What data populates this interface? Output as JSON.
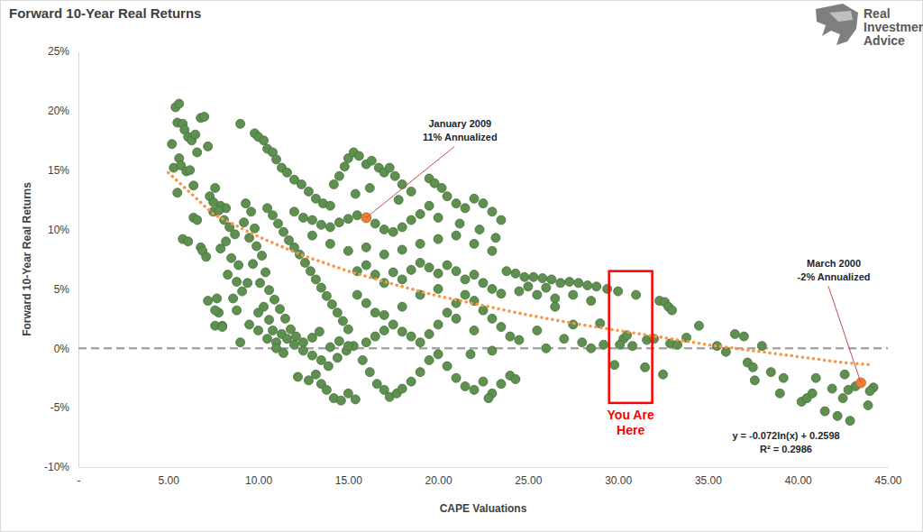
{
  "chart_data": {
    "type": "scatter",
    "title": "Forward 10-Year Real Returns",
    "logo": [
      "Real",
      "Investment",
      "Advice"
    ],
    "x_label": "CAPE Valuations",
    "y_label": "Forward 10-Year Real Returns",
    "xlim": [
      0,
      45
    ],
    "ylim": [
      -10,
      25
    ],
    "xticks": [
      {
        "value": 0,
        "label": "-"
      },
      {
        "value": 5,
        "label": "5.00"
      },
      {
        "value": 10,
        "label": "10.00"
      },
      {
        "value": 15,
        "label": "15.00"
      },
      {
        "value": 20,
        "label": "20.00"
      },
      {
        "value": 25,
        "label": "25.00"
      },
      {
        "value": 30,
        "label": "30.00"
      },
      {
        "value": 35,
        "label": "35.00"
      },
      {
        "value": 40,
        "label": "40.00"
      },
      {
        "value": 45,
        "label": "45.00"
      }
    ],
    "yticks": [
      {
        "value": -10,
        "label": "-10%"
      },
      {
        "value": -5,
        "label": "-5%"
      },
      {
        "value": 0,
        "label": "0%"
      },
      {
        "value": 5,
        "label": "5%"
      },
      {
        "value": 10,
        "label": "10%"
      },
      {
        "value": 15,
        "label": "15%"
      },
      {
        "value": 20,
        "label": "20%"
      },
      {
        "value": 25,
        "label": "25%"
      }
    ],
    "grid": false,
    "series": [
      {
        "type": "scatter",
        "color": "#5e9150",
        "marker": "circle",
        "x": [
          5.2,
          5.4,
          5.6,
          5.5,
          5.8,
          5.9,
          6.1,
          6.3,
          6.5,
          6.6,
          6.8,
          7.0,
          7.2,
          5.3,
          5.6,
          5.7,
          6.0,
          6.2,
          6.4,
          5.5,
          5.8,
          6.1,
          6.4,
          6.6,
          6.8,
          6.9,
          7.1,
          7.3,
          7.5,
          7.7,
          7.8,
          7.6,
          8.0,
          7.6,
          7.9,
          8.2,
          9,
          9.8,
          10,
          10.3,
          10.5,
          10.8,
          11,
          11.3,
          11.6,
          12,
          12.4,
          12.8,
          13.2,
          13.6,
          14,
          14.2,
          14.5,
          14.8,
          15,
          15.3,
          15.6,
          16,
          16.3,
          16.7,
          17,
          17.3,
          17.6,
          18,
          18.5,
          15.4,
          16.2,
          17.8,
          19.5,
          19.8,
          20.2,
          20.5,
          21,
          21.5,
          22,
          22.5,
          23,
          23.5,
          20,
          21.2,
          22.3,
          23.2,
          23.8,
          24.3,
          24.8,
          25.3,
          25.8,
          26.3,
          26.8,
          27.3,
          27.8,
          28.3,
          28.8,
          29.4,
          30,
          31,
          32.3,
          32.6,
          32.8,
          33,
          24.5,
          25.5,
          26.5,
          27.5,
          28.5,
          25,
          26,
          7.5,
          7.8,
          8.1,
          8.4,
          8.7,
          8.2,
          7.9,
          8.5,
          8.9,
          8.3,
          8.8,
          9.1,
          8.6,
          9.3,
          9.6,
          9.2,
          9.8,
          9.5,
          9.9,
          10.2,
          9.7,
          10.4,
          10.1,
          10.6,
          10.9,
          11.2,
          11.5,
          11.8,
          12.1,
          10.5,
          10.8,
          11.1,
          11.4,
          11.7,
          12,
          12.3,
          12.6,
          12.9,
          13.2,
          13.5,
          13.8,
          14.1,
          14.4,
          14.7,
          15,
          11.3,
          11.6,
          12.0,
          12.5,
          13,
          13.4,
          11,
          10.8,
          10.6,
          10.3,
          12.2,
          12.8,
          13.2,
          13.5,
          13.8,
          14.2,
          14.6,
          15,
          15.4,
          13.9,
          14.4,
          14.9,
          15.3,
          15.8,
          16.2,
          16.6,
          17,
          17.3,
          17.7,
          16,
          16.5,
          17,
          12.5,
          13,
          13.5,
          14,
          14.5,
          15,
          12,
          12.5,
          13,
          13.5,
          14,
          14.5,
          15,
          15.5,
          16,
          16.5,
          17,
          17.5,
          18,
          18.5,
          19,
          19.5,
          13,
          14,
          15,
          16,
          17,
          18,
          19,
          20,
          21,
          22,
          23,
          15.5,
          16,
          16.5,
          17,
          17.5,
          18,
          18.5,
          19,
          19.5,
          20,
          20.5,
          21,
          21.5,
          22,
          22.5,
          23,
          23.5,
          15.5,
          16,
          16.5,
          17,
          17.5,
          18,
          18.5,
          19,
          19.5,
          20,
          20.5,
          21,
          21.5,
          22,
          22.5,
          23,
          23.5,
          24,
          24.5,
          18,
          19,
          20,
          21,
          22,
          20,
          20.5,
          21,
          21.5,
          22,
          22.5,
          23,
          23.5,
          24,
          24.3,
          19.5,
          19,
          18.5,
          18,
          22.8,
          21.8,
          23,
          7.2,
          7.6,
          8,
          9,
          9.5,
          10,
          9.4,
          8.8,
          10.5,
          11,
          11.4,
          10,
          27.5,
          28,
          28.5,
          29,
          29.2,
          29.8,
          30.3,
          30.5,
          30.1,
          30.8,
          31.5,
          31.6,
          32,
          32.5,
          32.9,
          33.3,
          33.8,
          34.5,
          35.5,
          36,
          36.5,
          37,
          37.2,
          37.5,
          37.6,
          38,
          38.5,
          39,
          39.2,
          40.2,
          40.5,
          40.8,
          41,
          41.5,
          41.9,
          42.2,
          42.5,
          42.8,
          42.9,
          43.2,
          43.9,
          44.2,
          44,
          42.6,
          26,
          26.5,
          27,
          25.5
        ],
        "values": [
          17.2,
          20.3,
          20.6,
          19,
          18.9,
          18.4,
          17.8,
          17.5,
          18,
          16.5,
          19.4,
          19.5,
          17,
          15.2,
          16,
          15.4,
          14.9,
          15,
          13.7,
          13.1,
          9.2,
          9.0,
          11,
          10.8,
          8.5,
          8.2,
          7.7,
          12.8,
          11.5,
          4.2,
          3.0,
          1.9,
          1.9,
          13.5,
          12,
          11.8,
          18.9,
          18.1,
          17.8,
          17.5,
          16.8,
          16.5,
          15.9,
          15.2,
          14.8,
          14.2,
          13.8,
          13.2,
          12.6,
          12.2,
          12,
          13.8,
          14.5,
          15.3,
          16,
          16.5,
          16.2,
          15.5,
          15.8,
          15.2,
          14.8,
          15.2,
          14.5,
          13.8,
          13.2,
          13,
          13.5,
          12.5,
          14.3,
          13.9,
          13.5,
          12.8,
          12.2,
          11.8,
          12.6,
          12.2,
          11.5,
          10.8,
          11,
          10.5,
          10,
          9.3,
          6.5,
          6.3,
          6,
          6,
          5.9,
          5.8,
          5.5,
          5.6,
          5.5,
          5.3,
          5.2,
          5,
          4.8,
          4.5,
          4,
          3.9,
          3.5,
          3.2,
          4.8,
          4.5,
          4.2,
          4.5,
          4,
          5.2,
          5.1,
          12.3,
          11.6,
          10.8,
          10.2,
          9.6,
          9.0,
          8.4,
          7.6,
          7.0,
          6.2,
          5.6,
          4.8,
          4.2,
          12.2,
          11.5,
          10.6,
          10.1,
          9.3,
          8.6,
          7.8,
          7.1,
          6.4,
          5.5,
          4.9,
          4.1,
          3.3,
          2.5,
          1.6,
          1.0,
          11.8,
          11.2,
          10.5,
          9.8,
          9.1,
          8.5,
          7.9,
          7.2,
          6.5,
          5.8,
          5.1,
          4.4,
          3.7,
          3.0,
          2.3,
          1.6,
          1.2,
          0.8,
          0.3,
          0.5,
          0.9,
          1.4,
          0.5,
          1.5,
          2.4,
          3.5,
          -2.4,
          -2.7,
          -2.2,
          -3.0,
          -3.5,
          -4.2,
          -4.4,
          -3.8,
          -4.3,
          -1.5,
          -0.8,
          -0.2,
          0.2,
          -1.0,
          -2.0,
          -3.0,
          -3.5,
          -4.1,
          -3.8,
          0.5,
          1.0,
          1.5,
          -0.2,
          -0.6,
          -1.0,
          0.1,
          0.6,
          0.2,
          11.5,
          11,
          10.8,
          10.4,
          10.2,
          10.6,
          10.9,
          11.2,
          11,
          10.5,
          10,
          9.8,
          10.2,
          10.8,
          11.3,
          12,
          9.5,
          8.8,
          8.2,
          8.5,
          7.9,
          8.3,
          8.8,
          9.2,
          9.5,
          8.8,
          8.2,
          6.5,
          7,
          6.2,
          5.5,
          6.4,
          5.8,
          6.6,
          7.2,
          6.8,
          6.3,
          7.0,
          6.5,
          5.8,
          6.2,
          5.5,
          5,
          4.6,
          4.5,
          3.8,
          3.0,
          2.8,
          2.0,
          1.4,
          1.0,
          0.5,
          1.2,
          2.0,
          3.0,
          3.8,
          4.5,
          4.0,
          3.2,
          2.5,
          1.8,
          1.0,
          0.7,
          3.5,
          4.5,
          5,
          2.5,
          1.5,
          -0.5,
          -1.5,
          -2.5,
          -3.2,
          -3.5,
          -2.8,
          -3.8,
          -3.0,
          -2.3,
          -2.6,
          -1.0,
          -2.0,
          -2.8,
          -3.4,
          -4.2,
          -0.5,
          -0.2,
          4,
          3.2,
          1.8,
          0.5,
          2,
          3,
          5.5,
          3.2,
          0.8,
          0.0,
          -0.4,
          1.5,
          2.0,
          0.5,
          0,
          2.1,
          0.3,
          -1.4,
          0.8,
          1.1,
          0.3,
          0.2,
          -1.6,
          0.7,
          0.8,
          -2.2,
          0.4,
          0.3,
          0.9,
          1.9,
          0.2,
          -0.3,
          1.2,
          1.0,
          -1.2,
          -1.6,
          -2.7,
          0.2,
          -2.0,
          -3.8,
          -2.5,
          -4.5,
          -4.2,
          -3.8,
          -2.5,
          -5.3,
          -3.4,
          -5.7,
          -4.2,
          -3.5,
          -6.1,
          -3.2,
          -4.8,
          -3.3,
          -3.6,
          -2.2,
          0,
          3.5,
          0.8,
          1.5
        ]
      },
      {
        "type": "line",
        "color": "#f79646",
        "line_style": "dotted",
        "x": [
          5,
          7.5,
          10,
          12.5,
          15,
          17.5,
          20,
          22.5,
          25,
          27.5,
          30,
          32.5,
          35,
          37.5,
          40,
          42.5,
          44.2
        ],
        "values": [
          14.8,
          11.3,
          9.4,
          7.8,
          6.5,
          5.4,
          4.4,
          3.6,
          2.8,
          2.1,
          1.5,
          0.9,
          0.3,
          -0.2,
          -0.7,
          -1.2,
          -1.4
        ]
      }
    ],
    "reference_lines": [
      {
        "value": 0,
        "color": "#a6a6a6",
        "line_style": "dashed"
      }
    ],
    "annotations": [
      {
        "text": [
          "January 2009",
          "11% Annualized"
        ],
        "x": 16,
        "y": 11,
        "color": "#ed7d31"
      },
      {
        "text": [
          "March 2000",
          "-2% Annualized"
        ],
        "x": 43.5,
        "y": -2.9,
        "color": "#ed7d31"
      }
    ],
    "highlight_box": {
      "x": [
        29.5,
        31.9
      ],
      "y": [
        -4.6,
        6.5
      ],
      "label": [
        "You Are",
        "Here"
      ],
      "color": "#ff0000"
    },
    "equation": [
      "y = -0.072ln(x) + 0.2598",
      "R² = 0.2986"
    ]
  }
}
